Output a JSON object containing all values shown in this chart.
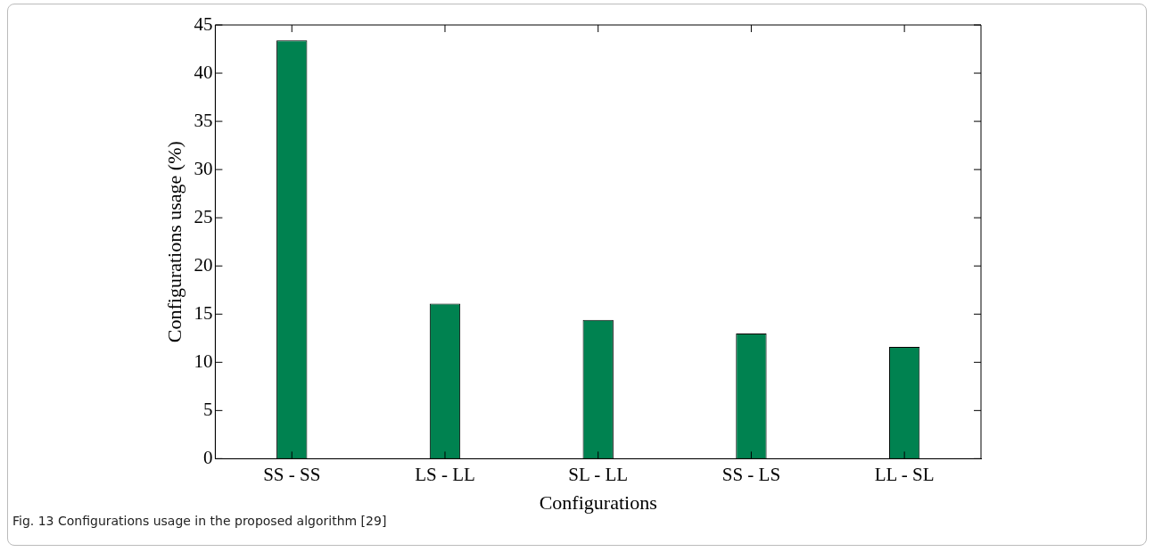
{
  "chart_data": {
    "type": "bar",
    "xlabel": "Configurations",
    "ylabel": "Configurations usage (%)",
    "categories": [
      "SS - SS",
      "LS - LL",
      "SL - LL",
      "SS - LS",
      "LL - SL"
    ],
    "values": [
      43.4,
      16.1,
      14.4,
      13.0,
      11.6
    ],
    "color": "#008250",
    "ylim": [
      0,
      45
    ],
    "yticks": [
      0,
      5,
      10,
      15,
      20,
      25,
      30,
      35,
      40,
      45
    ],
    "grid": false,
    "annotations": [
      "Fig. 13 Configurations usage in the proposed algorithm [29]"
    ]
  }
}
